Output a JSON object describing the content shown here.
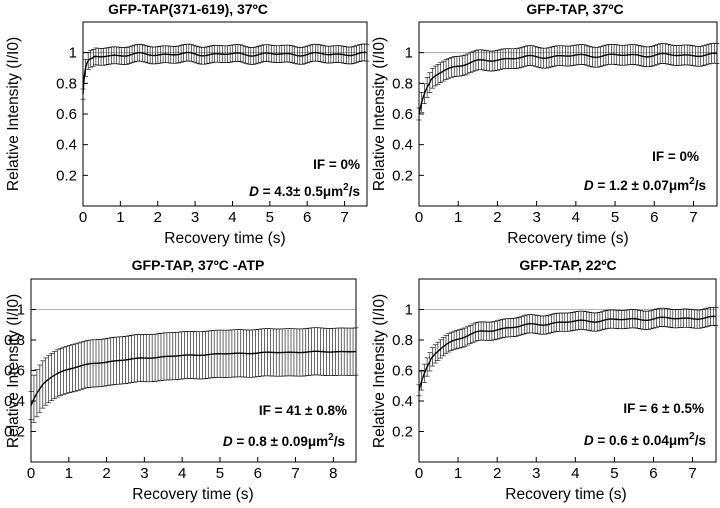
{
  "figure": {
    "panel_count": 4
  },
  "chart_data": [
    {
      "type": "line",
      "title": "GFP-TAP(371-619), 37ºC",
      "xlabel": "Recovery time (s)",
      "ylabel": "Relative Intensity (I/I0)",
      "xlim": [
        0,
        7.6
      ],
      "ylim": [
        0,
        1.2
      ],
      "xticks": [
        0,
        1,
        2,
        3,
        4,
        5,
        6,
        7
      ],
      "yticks": [
        0.2,
        0.4,
        0.6,
        0.8,
        1
      ],
      "reference_line": 1,
      "curve": {
        "y0": 0.73,
        "plateau": 0.99,
        "tau_fast": 0.05,
        "fast_weight": 0.85,
        "tau_slow": 0.5,
        "xmax": 7.6,
        "noise": 0.012
      },
      "errorbar_halfwidth": 0.055,
      "annotations": [
        "IF = 0%",
        "D = 4.3± 0.5μm²/s"
      ]
    },
    {
      "type": "line",
      "title": "GFP-TAP, 37ºC",
      "xlabel": "Recovery time (s)",
      "ylabel": "Relative Intensity (I/I0)",
      "xlim": [
        0,
        7.6
      ],
      "ylim": [
        0,
        1.2
      ],
      "xticks": [
        0,
        1,
        2,
        3,
        4,
        5,
        6,
        7
      ],
      "yticks": [
        0.2,
        0.4,
        0.6,
        0.8,
        1
      ],
      "reference_line": 1,
      "curve": {
        "y0": 0.6,
        "plateau": 0.985,
        "tau_fast": 0.2,
        "fast_weight": 0.6,
        "tau_slow": 1.2,
        "xmax": 7.6,
        "noise": 0.012
      },
      "errorbar_halfwidth": 0.065,
      "annotations": [
        "IF = 0%",
        "D = 1.2 ± 0.07μm²/s"
      ]
    },
    {
      "type": "line",
      "title": "GFP-TAP, 37ºC -ATP",
      "xlabel": "Recovery time (s)",
      "ylabel": "Relative Intensity (I/I0)",
      "xlim": [
        0,
        8.6
      ],
      "ylim": [
        0,
        1.2
      ],
      "xticks": [
        0,
        1,
        2,
        3,
        4,
        5,
        6,
        7,
        8
      ],
      "yticks": [
        0.2,
        0.4,
        0.6,
        0.8,
        1
      ],
      "reference_line": 1,
      "curve": {
        "y0": 0.37,
        "plateau": 0.73,
        "tau_fast": 0.35,
        "fast_weight": 0.55,
        "tau_slow": 2.5,
        "xmax": 8.6,
        "noise": 0.004
      },
      "errorbar_halfwidth": 0.155,
      "annotations": [
        "IF = 41 ± 0.8%",
        "D = 0.8 ± 0.09μm²/s"
      ]
    },
    {
      "type": "line",
      "title": "GFP-TAP, 22ºC",
      "xlabel": "Recovery time (s)",
      "ylabel": "Relative Intensity (I/I0)",
      "xlim": [
        0,
        7.6
      ],
      "ylim": [
        0,
        1.2
      ],
      "xticks": [
        0,
        1,
        2,
        3,
        4,
        5,
        6,
        7
      ],
      "yticks": [
        0.2,
        0.4,
        0.6,
        0.8,
        1
      ],
      "reference_line": 1,
      "curve": {
        "y0": 0.47,
        "plateau": 0.95,
        "tau_fast": 0.3,
        "fast_weight": 0.55,
        "tau_slow": 2.0,
        "xmax": 7.6,
        "noise": 0.01
      },
      "errorbar_halfwidth": 0.06,
      "annotations": [
        "IF = 6 ± 0.5%",
        "D = 0.6 ± 0.04μm²/s"
      ]
    }
  ]
}
